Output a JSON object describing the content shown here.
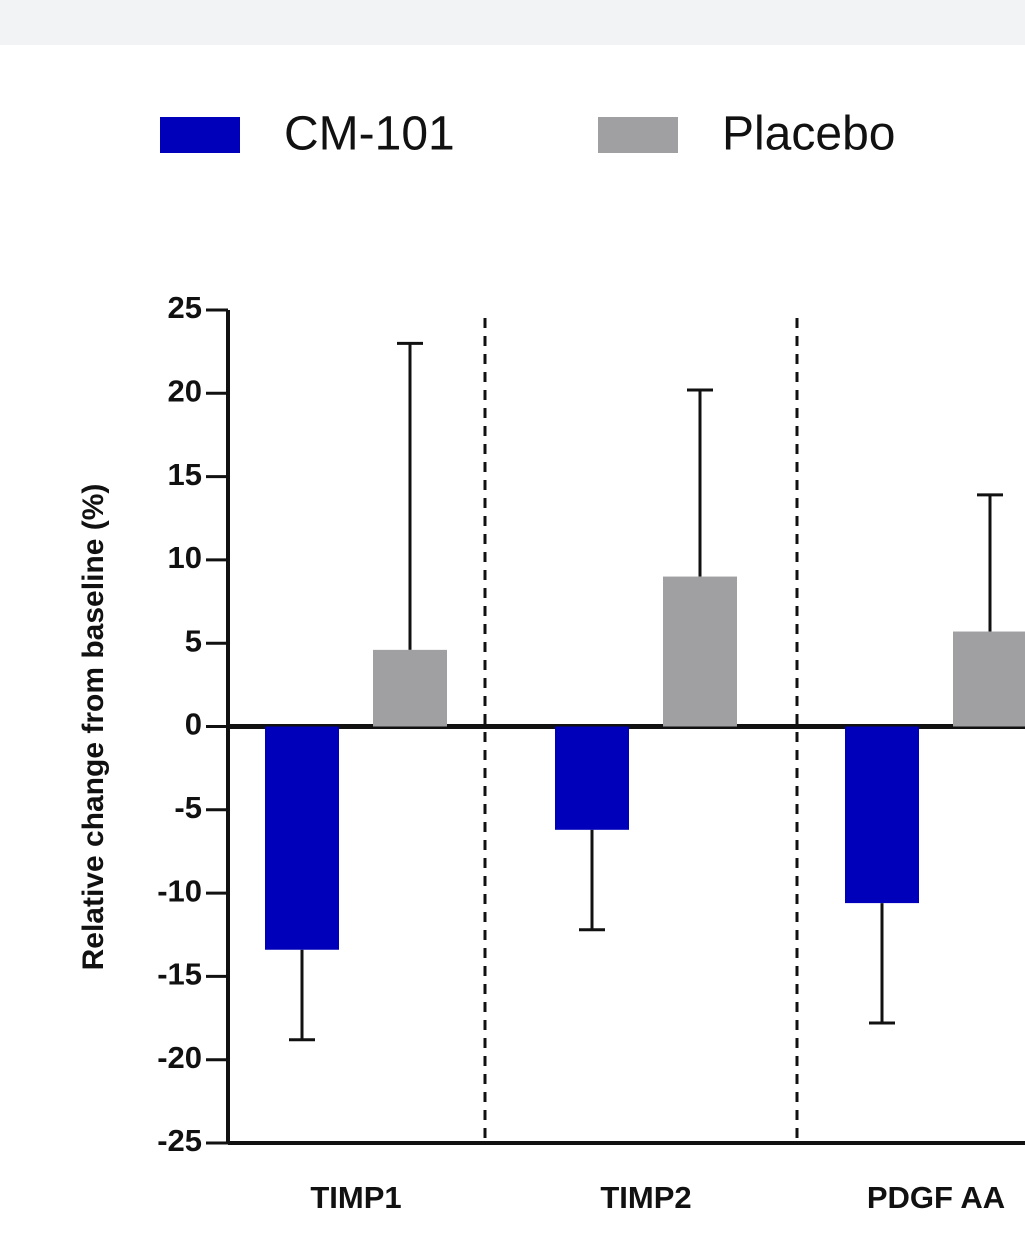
{
  "chart_data": {
    "type": "bar",
    "y_label": "Relative change from baseline (%)",
    "categories": [
      "TIMP1",
      "TIMP2",
      "PDGF AA"
    ],
    "series": [
      {
        "name": "CM-101",
        "color": "#0000bb",
        "values": [
          -13.4,
          -6.2,
          -10.6
        ],
        "errors": [
          5.4,
          6.0,
          7.2
        ]
      },
      {
        "name": "Placebo",
        "color": "#a0a0a2",
        "values": [
          4.6,
          9.0,
          5.7
        ],
        "errors": [
          18.4,
          11.2,
          8.2
        ]
      }
    ],
    "ylim": [
      -25,
      25
    ],
    "yticks": [
      25,
      20,
      15,
      10,
      5,
      0,
      -5,
      -10,
      -15,
      -20,
      -25
    ]
  }
}
